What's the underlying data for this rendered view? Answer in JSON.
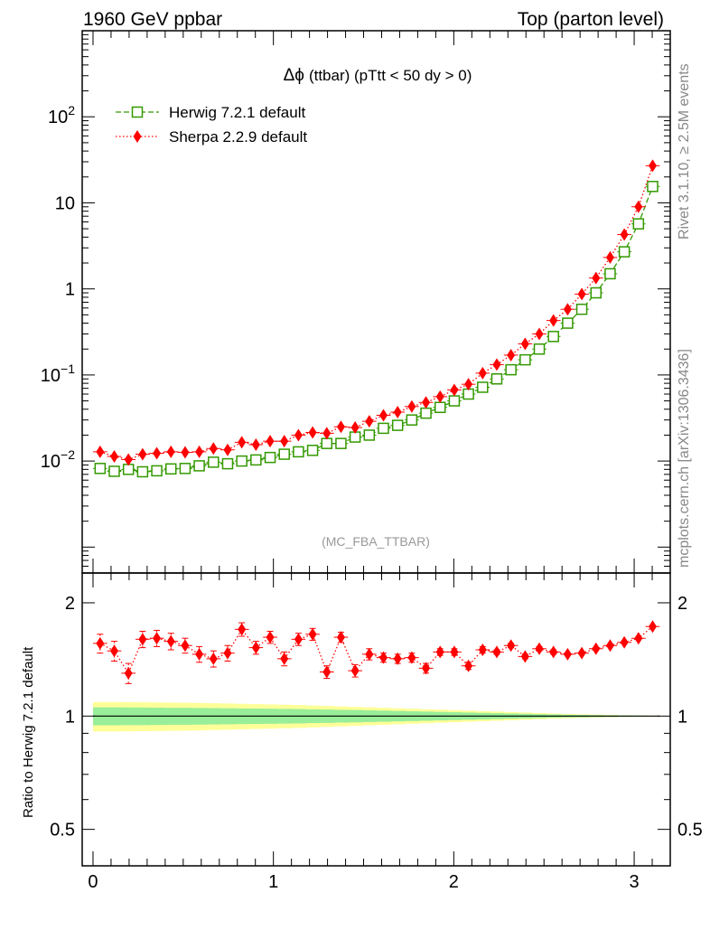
{
  "header": {
    "left": "1960 GeV ppbar",
    "right": "Top (parton level)"
  },
  "side": {
    "rivet": "Rivet 3.1.10, ≥ 2.5M events",
    "mcplots": "mcplots.cern.ch [arXiv:1306.3436]"
  },
  "colors": {
    "herwig": "#339900",
    "sherpa": "#ff0000",
    "band_inner": "#99ee99",
    "band_outer": "#ffff99",
    "axis": "#000000"
  },
  "chart_data": [
    {
      "type": "line",
      "title_prefix": "Δϕ",
      "title": "(ttbar) (pTtt < 50 dy > 0)",
      "watermark": "(MC_FBA_TTBAR)",
      "yscale": "log",
      "xlim": [
        -0.06,
        3.2
      ],
      "ylim": [
        0.0005,
        1000
      ],
      "legend_position": "top-left",
      "y_ticks": [
        {
          "value": 0.01,
          "base": "10",
          "exp": "−2"
        },
        {
          "value": 0.1,
          "base": "10",
          "exp": "−1"
        },
        {
          "value": 1,
          "base": "1",
          "exp": ""
        },
        {
          "value": 10,
          "base": "10",
          "exp": ""
        },
        {
          "value": 100,
          "base": "10",
          "exp": "2"
        }
      ],
      "x": [
        0.0393,
        0.1178,
        0.1963,
        0.2749,
        0.3534,
        0.432,
        0.5105,
        0.589,
        0.6676,
        0.7461,
        0.8247,
        0.9032,
        0.9817,
        1.0603,
        1.1388,
        1.2174,
        1.2959,
        1.3744,
        1.453,
        1.5315,
        1.6101,
        1.6886,
        1.7671,
        1.8457,
        1.9242,
        2.0028,
        2.0813,
        2.1598,
        2.2384,
        2.3169,
        2.3955,
        2.474,
        2.5525,
        2.6311,
        2.7096,
        2.7882,
        2.8667,
        2.9452,
        3.0238,
        3.1023
      ],
      "series": [
        {
          "name": "Herwig 7.2.1 default",
          "marker": "open-square",
          "line": "dashed",
          "values": [
            0.0082,
            0.0076,
            0.008,
            0.0075,
            0.0077,
            0.0081,
            0.0082,
            0.0088,
            0.0097,
            0.0093,
            0.01,
            0.0103,
            0.011,
            0.012,
            0.0128,
            0.0133,
            0.016,
            0.016,
            0.019,
            0.02,
            0.024,
            0.026,
            0.03,
            0.036,
            0.042,
            0.05,
            0.06,
            0.072,
            0.09,
            0.115,
            0.15,
            0.2,
            0.28,
            0.4,
            0.58,
            0.9,
            1.5,
            2.7,
            5.7,
            15.5
          ]
        },
        {
          "name": "Sherpa 2.2.9 default",
          "marker": "filled-diamond",
          "line": "dotted",
          "values": [
            0.0128,
            0.0113,
            0.0104,
            0.012,
            0.0123,
            0.0128,
            0.0126,
            0.0128,
            0.014,
            0.0135,
            0.0165,
            0.0155,
            0.017,
            0.017,
            0.02,
            0.0215,
            0.021,
            0.025,
            0.0245,
            0.029,
            0.034,
            0.037,
            0.043,
            0.048,
            0.056,
            0.067,
            0.078,
            0.105,
            0.132,
            0.17,
            0.23,
            0.3,
            0.43,
            0.58,
            0.87,
            1.34,
            2.32,
            4.28,
            9.0,
            27.0
          ]
        }
      ]
    },
    {
      "type": "line",
      "ylabel": "Ratio to Herwig 7.2.1 default",
      "xlim": [
        -0.06,
        3.2
      ],
      "ylim": [
        0.4,
        2.4
      ],
      "yscale": "log",
      "x_ticks": [
        0,
        1,
        2,
        3
      ],
      "y_ticks": [
        0.5,
        1,
        2
      ],
      "reference_line": 1,
      "band_inner_halfwidth": [
        0.055,
        0.055,
        0.054,
        0.054,
        0.053,
        0.052,
        0.052,
        0.051,
        0.05,
        0.049,
        0.048,
        0.047,
        0.046,
        0.045,
        0.044,
        0.042,
        0.041,
        0.039,
        0.038,
        0.036,
        0.034,
        0.032,
        0.03,
        0.028,
        0.026,
        0.024,
        0.022,
        0.02,
        0.018,
        0.016,
        0.014,
        0.012,
        0.01,
        0.008,
        0.007,
        0.006,
        0.005,
        0.004,
        0.003,
        0.002
      ],
      "band_outer_halfwidth": [
        0.09,
        0.09,
        0.089,
        0.088,
        0.087,
        0.086,
        0.085,
        0.084,
        0.082,
        0.08,
        0.078,
        0.076,
        0.074,
        0.072,
        0.07,
        0.067,
        0.064,
        0.061,
        0.058,
        0.055,
        0.052,
        0.049,
        0.046,
        0.043,
        0.04,
        0.037,
        0.034,
        0.031,
        0.028,
        0.025,
        0.022,
        0.019,
        0.016,
        0.013,
        0.011,
        0.009,
        0.007,
        0.005,
        0.004,
        0.003
      ],
      "series": [
        {
          "name": "Sherpa 2.2.9 default",
          "values": [
            1.56,
            1.49,
            1.3,
            1.6,
            1.61,
            1.58,
            1.54,
            1.46,
            1.42,
            1.47,
            1.7,
            1.52,
            1.62,
            1.42,
            1.6,
            1.65,
            1.31,
            1.62,
            1.32,
            1.46,
            1.43,
            1.42,
            1.43,
            1.34,
            1.48,
            1.48,
            1.36,
            1.5,
            1.48,
            1.54,
            1.44,
            1.51,
            1.48,
            1.46,
            1.47,
            1.51,
            1.54,
            1.57,
            1.61,
            1.73
          ],
          "errors": [
            0.09,
            0.09,
            0.08,
            0.08,
            0.08,
            0.08,
            0.07,
            0.07,
            0.07,
            0.07,
            0.07,
            0.06,
            0.06,
            0.06,
            0.06,
            0.06,
            0.05,
            0.05,
            0.05,
            0.05,
            0.04,
            0.04,
            0.04,
            0.04,
            0.03,
            0.03,
            0.03,
            0.03,
            0.02,
            0.02,
            0.02,
            0.02,
            0.02,
            0.01,
            0.01,
            0.01,
            0.01,
            0.01,
            0.01,
            0.01
          ]
        }
      ]
    }
  ]
}
